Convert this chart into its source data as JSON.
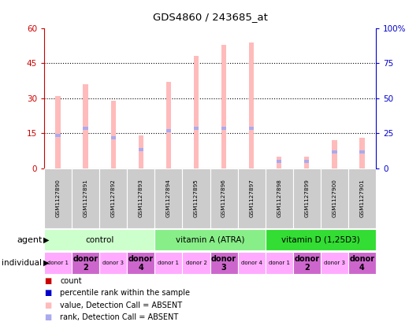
{
  "title": "GDS4860 / 243685_at",
  "samples": [
    "GSM1127890",
    "GSM1127891",
    "GSM1127892",
    "GSM1127893",
    "GSM1127894",
    "GSM1127895",
    "GSM1127896",
    "GSM1127897",
    "GSM1127898",
    "GSM1127899",
    "GSM1127900",
    "GSM1127901"
  ],
  "pink_bar_heights": [
    31,
    36,
    29,
    14,
    37,
    48,
    53,
    54,
    5,
    5,
    12,
    13
  ],
  "blue_marker_heights": [
    14,
    17,
    13,
    8,
    16,
    17,
    17,
    17,
    3,
    3,
    7,
    7
  ],
  "ylim_left": [
    0,
    60
  ],
  "ylim_right": [
    0,
    100
  ],
  "yticks_left": [
    0,
    15,
    30,
    45,
    60
  ],
  "yticks_right": [
    0,
    25,
    50,
    75,
    100
  ],
  "ytick_labels_left": [
    "0",
    "15",
    "30",
    "45",
    "60"
  ],
  "ytick_labels_right": [
    "0",
    "25",
    "50",
    "75",
    "100%"
  ],
  "agent_groups": [
    {
      "label": "control",
      "start": 0,
      "end": 4,
      "color": "#ccffcc"
    },
    {
      "label": "vitamin A (ATRA)",
      "start": 4,
      "end": 8,
      "color": "#88ee88"
    },
    {
      "label": "vitamin D (1,25D3)",
      "start": 8,
      "end": 12,
      "color": "#33dd33"
    }
  ],
  "individual_groups": [
    {
      "label": "donor 1",
      "col": 0,
      "color": "#ffaaff",
      "bold": false
    },
    {
      "label": "donor\n2",
      "col": 1,
      "color": "#cc66cc",
      "bold": true
    },
    {
      "label": "donor 3",
      "col": 2,
      "color": "#ffaaff",
      "bold": false
    },
    {
      "label": "donor\n4",
      "col": 3,
      "color": "#cc66cc",
      "bold": true
    },
    {
      "label": "donor 1",
      "col": 4,
      "color": "#ffaaff",
      "bold": false
    },
    {
      "label": "donor 2",
      "col": 5,
      "color": "#ffaaff",
      "bold": false
    },
    {
      "label": "donor\n3",
      "col": 6,
      "color": "#cc66cc",
      "bold": true
    },
    {
      "label": "donor 4",
      "col": 7,
      "color": "#ffaaff",
      "bold": false
    },
    {
      "label": "donor 1",
      "col": 8,
      "color": "#ffaaff",
      "bold": false
    },
    {
      "label": "donor\n2",
      "col": 9,
      "color": "#cc66cc",
      "bold": true
    },
    {
      "label": "donor 3",
      "col": 10,
      "color": "#ffaaff",
      "bold": false
    },
    {
      "label": "donor\n4",
      "col": 11,
      "color": "#cc66cc",
      "bold": true
    }
  ],
  "pink_bar_color": "#ffbbbb",
  "blue_marker_color": "#aaaaee",
  "left_axis_color": "#cc0000",
  "right_axis_color": "#0000cc",
  "sample_box_color": "#cccccc",
  "bg_color": "#ffffff",
  "bar_width": 0.18
}
